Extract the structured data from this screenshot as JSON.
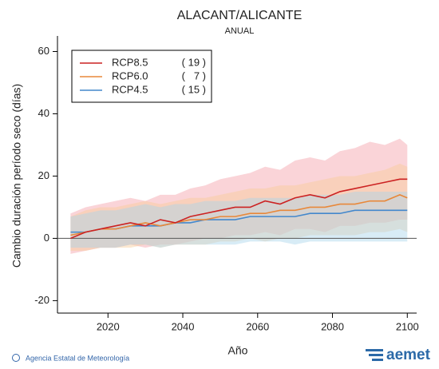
{
  "chart_data": {
    "type": "line",
    "title": "ALACANT/ALICANTE",
    "subtitle": "ANUAL",
    "y_label": "Cambio duración período seco (días)",
    "x_label": "Año",
    "footer": "Agencia Estatal de Meteorología",
    "logo": "aemet",
    "x": [
      2010,
      2014,
      2018,
      2022,
      2026,
      2030,
      2034,
      2038,
      2042,
      2046,
      2050,
      2054,
      2058,
      2062,
      2066,
      2070,
      2074,
      2078,
      2082,
      2086,
      2090,
      2094,
      2098,
      2100
    ],
    "xlim": [
      2006.5,
      2102.5
    ],
    "xticks": [
      2020,
      2040,
      2060,
      2080,
      2100
    ],
    "ylim": [
      -24,
      65
    ],
    "yticks": [
      -20,
      0,
      20,
      40,
      60
    ],
    "series": [
      {
        "name": "RCP8.5",
        "models": "( 19 )",
        "color": "#cc2222",
        "band_color": "#f4a0a8",
        "values": [
          0,
          2,
          3,
          4,
          5,
          4,
          6,
          5,
          7,
          8,
          9,
          10,
          10,
          12,
          11,
          13,
          14,
          13,
          15,
          16,
          17,
          18,
          19,
          19
        ],
        "lower": [
          -5,
          -4,
          -3,
          -3,
          -2,
          -3,
          -2,
          -2,
          -1,
          0,
          0,
          1,
          1,
          2,
          1,
          3,
          3,
          2,
          4,
          4,
          5,
          5,
          6,
          6
        ],
        "upper": [
          8,
          10,
          11,
          12,
          13,
          12,
          14,
          14,
          16,
          17,
          19,
          20,
          21,
          23,
          22,
          25,
          26,
          25,
          28,
          29,
          31,
          30,
          32,
          30
        ]
      },
      {
        "name": "RCP6.0",
        "models": "(   7 )",
        "color": "#e8883a",
        "band_color": "#f8cc98",
        "values": [
          1,
          2,
          3,
          3,
          4,
          5,
          4,
          5,
          6,
          6,
          7,
          7,
          8,
          8,
          9,
          9,
          10,
          10,
          11,
          11,
          12,
          12,
          14,
          13
        ],
        "lower": [
          -4,
          -4,
          -3,
          -3,
          -3,
          -2,
          -3,
          -2,
          -2,
          -2,
          -1,
          -1,
          0,
          -1,
          0,
          0,
          1,
          1,
          1,
          1,
          2,
          2,
          3,
          2
        ],
        "upper": [
          7,
          9,
          10,
          10,
          11,
          12,
          11,
          12,
          13,
          13,
          14,
          15,
          16,
          16,
          17,
          17,
          18,
          19,
          20,
          20,
          21,
          22,
          24,
          23
        ]
      },
      {
        "name": "RCP4.5",
        "models": "( 15 )",
        "color": "#4488cc",
        "band_color": "#a8d4ec",
        "values": [
          2,
          2,
          3,
          3,
          4,
          4,
          4,
          5,
          5,
          6,
          6,
          6,
          7,
          7,
          7,
          7,
          8,
          8,
          8,
          9,
          9,
          9,
          9,
          9
        ],
        "lower": [
          -3,
          -3,
          -3,
          -3,
          -2,
          -2,
          -3,
          -2,
          -2,
          -2,
          -2,
          -2,
          -1,
          -1,
          -1,
          -2,
          -1,
          -1,
          -1,
          -1,
          -1,
          -1,
          -1,
          -1
        ],
        "upper": [
          7,
          8,
          9,
          9,
          10,
          11,
          10,
          11,
          11,
          12,
          12,
          12,
          13,
          13,
          13,
          13,
          14,
          14,
          14,
          15,
          15,
          15,
          15,
          15
        ]
      }
    ]
  }
}
